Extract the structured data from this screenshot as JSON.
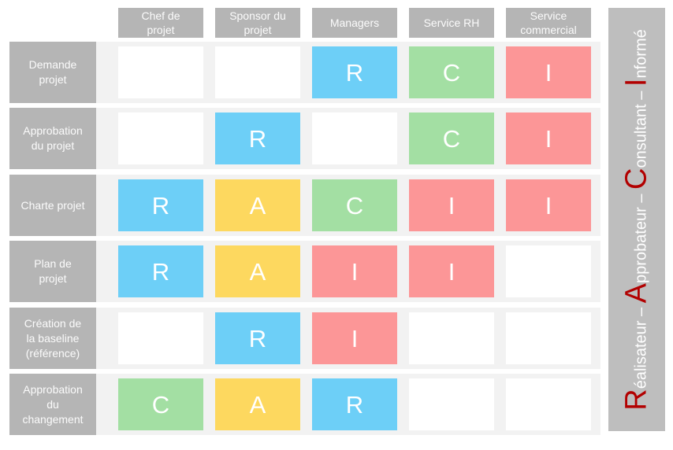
{
  "matrix": {
    "columns": [
      {
        "label": "Chef de\nprojet"
      },
      {
        "label": "Sponsor du\nprojet"
      },
      {
        "label": "Managers"
      },
      {
        "label": "Service RH"
      },
      {
        "label": "Service\ncommercial"
      }
    ],
    "rows": [
      {
        "label": "Demande\nprojet",
        "cells": [
          "",
          "",
          "R",
          "C",
          "I"
        ]
      },
      {
        "label": "Approbation\ndu projet",
        "cells": [
          "",
          "R",
          "",
          "C",
          "I"
        ]
      },
      {
        "label": "Charte projet",
        "cells": [
          "R",
          "A",
          "C",
          "I",
          "I"
        ]
      },
      {
        "label": "Plan de\nprojet",
        "cells": [
          "R",
          "A",
          "I",
          "I",
          ""
        ]
      },
      {
        "label": "Création de\nla baseline\n(référence)",
        "cells": [
          "",
          "R",
          "I",
          "",
          ""
        ]
      },
      {
        "label": "Approbation\ndu\nchangement",
        "cells": [
          "C",
          "A",
          "R",
          "",
          ""
        ]
      }
    ]
  },
  "legend": {
    "separator": " – ",
    "segments": [
      {
        "initial": "R",
        "rest": "éalisateur"
      },
      {
        "initial": "A",
        "rest": "pprobateur"
      },
      {
        "initial": "C",
        "rest": "onsultant"
      },
      {
        "initial": "I",
        "rest": "nformé"
      }
    ]
  },
  "colors": {
    "R": "#6dcff7",
    "A": "#fdd85f",
    "C": "#a3dfa3",
    "I": "#fc9697",
    "empty_cell": "#ffffff",
    "header_gray": "#b5b5b5",
    "sidebar_gray": "#bebebe",
    "stripe_gray": "#f2f2f2",
    "initial_red": "#b20000",
    "cell_text": "#ffffff"
  }
}
